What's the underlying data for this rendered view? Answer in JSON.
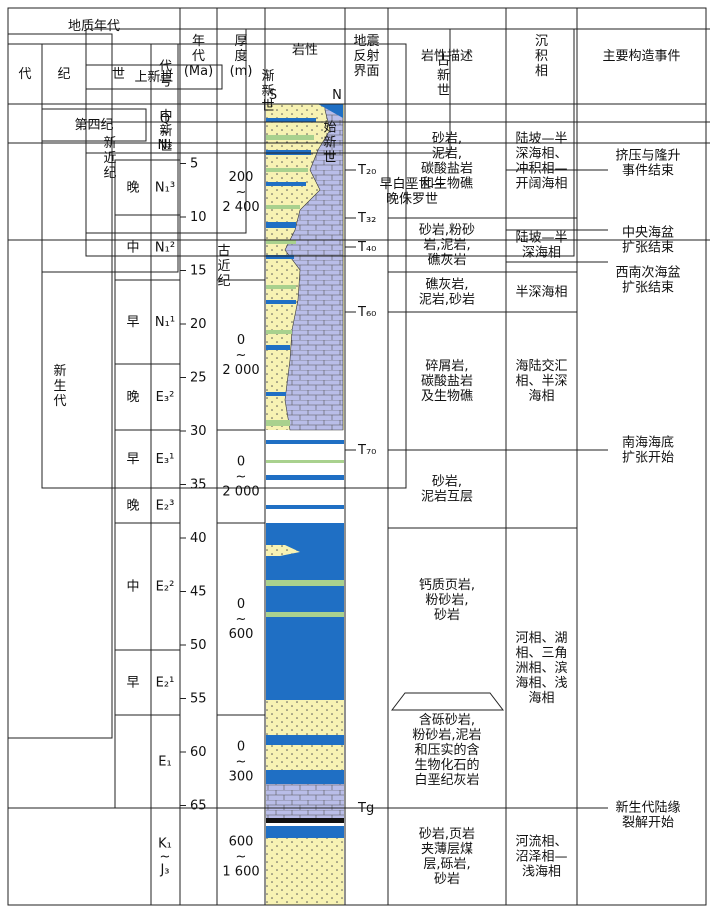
{
  "header": {
    "geologic_time": "地质年代",
    "era": "代",
    "period": "纪",
    "epoch": "世",
    "code": "代\n号",
    "age": "年\n代\n(Ma)",
    "thickness": "厚\n度\n(m)",
    "lithology": "岩性",
    "lith_s": "S",
    "lith_n": "N",
    "seismic": "地震\n反射\n界面",
    "description": "岩性描述",
    "facies": "沉\n积\n相",
    "events": "主要构造事件"
  },
  "eras": [
    "新\n生\n代",
    "早白垩世—\n晚侏罗世"
  ],
  "periods": [
    "第四纪",
    "新\n近\n纪",
    "古\n近\n纪"
  ],
  "epochs": [
    "上新世",
    "中\n新\n世",
    "渐\n新\n世",
    "始\n新\n世",
    "古\n新\n世"
  ],
  "sub_epochs": [
    "晚",
    "中",
    "早",
    "晚",
    "早",
    "晚",
    "中",
    "早"
  ],
  "codes": [
    "Q\n~\nN₂",
    "N₁³",
    "N₁²",
    "N₁¹",
    "E₃²",
    "E₃¹",
    "E₂³",
    "E₂²",
    "E₂¹",
    "E₁",
    "K₁\n~\nJ₃"
  ],
  "ages": [
    5,
    10,
    15,
    20,
    25,
    30,
    35,
    40,
    45,
    50,
    55,
    60,
    65
  ],
  "thickness": [
    "200\n~\n2 400",
    "0\n~\n2 000",
    "0\n~\n2 000",
    "0\n~\n600",
    "0\n~\n300",
    "600\n~\n1 600"
  ],
  "seismic": [
    "T₂₀",
    "T₃₂",
    "T₄₀",
    "T₆₀",
    "T₇₀",
    "Tg"
  ],
  "descriptions": [
    "砂岩,\n泥岩,\n碳酸盐岩\n和生物礁",
    "砂岩,粉砂\n岩,泥岩,\n礁灰岩",
    "礁灰岩,\n泥岩,砂岩",
    "碎屑岩,\n碳酸盐岩\n及生物礁",
    "砂岩,\n泥岩互层",
    "钙质页岩,\n粉砂岩,\n砂岩",
    "含砾砂岩,\n粉砂岩,泥岩\n和压实的含\n生物化石的\n白垩纪灰岩",
    "砂岩,页岩\n夹薄层煤\n层,砾岩,\n砂岩"
  ],
  "facies": [
    "陆坡—半\n深海相、\n冲积相—\n开阔海相",
    "陆坡—半\n深海相",
    "半深海相",
    "海陆交汇\n相、半深\n海相",
    "河相、湖\n相、三角\n洲相、滨\n海相、浅\n海相",
    "河流相、\n沼泽相—\n浅海相"
  ],
  "events": [
    "挤压与隆升\n事件结束",
    "中央海盆\n扩张结束",
    "西南次海盆\n扩张结束",
    "南海海底\n扩张开始",
    "新生代陆缘\n裂解开始"
  ]
}
